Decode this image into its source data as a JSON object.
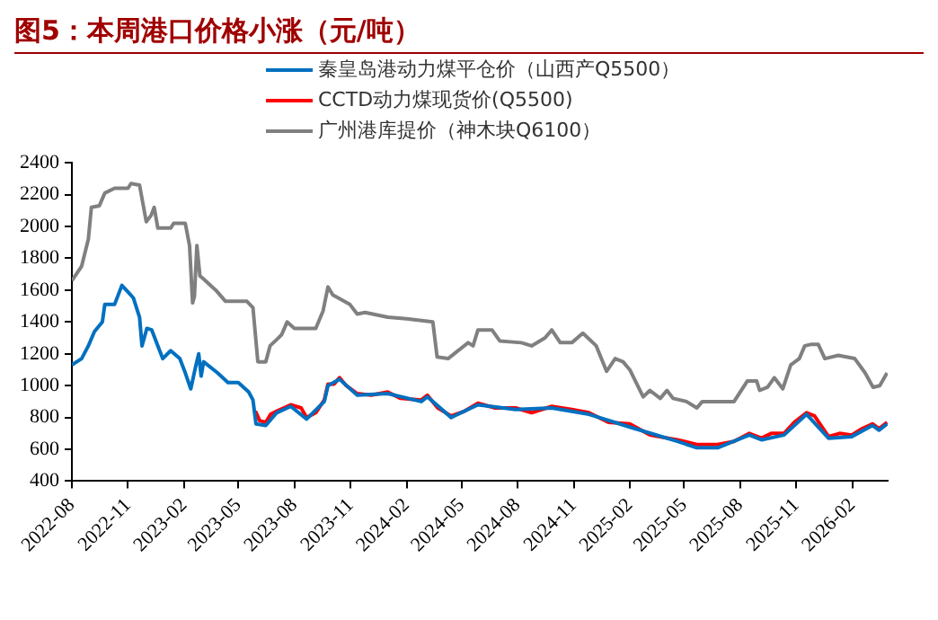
{
  "chart_data": {
    "type": "line",
    "title": "图5：本周港口价格小涨（元/吨）",
    "xlim": [
      "2022-08-01",
      "2026-03-31"
    ],
    "xticks": [
      "2022-08",
      "2022-11",
      "2023-02",
      "2023-05",
      "2023-08",
      "2023-11",
      "2024-02",
      "2024-05",
      "2024-08",
      "2024-11",
      "2025-02",
      "2025-05",
      "2025-08",
      "2025-11",
      "2026-02"
    ],
    "ylim": [
      400,
      2400
    ],
    "yticks": [
      400,
      600,
      800,
      1000,
      1200,
      1400,
      1600,
      1800,
      2000,
      2200,
      2400
    ],
    "grid": false,
    "legend": "top",
    "marker": "none",
    "line_style": "solid",
    "series": [
      {
        "name": "秦皇岛港动力煤平仓价（山西产Q5500）",
        "color": "#0070c0",
        "x": [
          "2022-08-01",
          "2022-08-17",
          "2022-08-28",
          "2022-09-07",
          "2022-09-20",
          "2022-09-24",
          "2022-10-10",
          "2022-10-22",
          "2022-11-03",
          "2022-11-10",
          "2022-11-20",
          "2022-11-24",
          "2022-12-02",
          "2022-12-10",
          "2022-12-20",
          "2022-12-28",
          "2023-01-10",
          "2023-01-25",
          "2023-02-03",
          "2023-02-12",
          "2023-02-20",
          "2023-02-25",
          "2023-03-01",
          "2023-03-05",
          "2023-03-28",
          "2023-04-14",
          "2023-05-01",
          "2023-05-18",
          "2023-05-25",
          "2023-05-30",
          "2023-06-15",
          "2023-07-03",
          "2023-07-26",
          "2023-08-21",
          "2023-09-19",
          "2023-09-25",
          "2023-10-14",
          "2023-11-12",
          "2024-01-01",
          "2024-02-25",
          "2024-03-06",
          "2024-04-14",
          "2024-05-28",
          "2024-07-29",
          "2024-09-26",
          "2024-11-26",
          "2025-02-01",
          "2025-04-20",
          "2025-05-22",
          "2025-06-25",
          "2025-08-16",
          "2025-09-05",
          "2025-10-12",
          "2025-11-18",
          "2025-12-24",
          "2026-01-31",
          "2026-03-06",
          "2026-03-17",
          "2026-03-30"
        ],
        "values": [
          1130,
          1170,
          1250,
          1340,
          1400,
          1510,
          1510,
          1630,
          1580,
          1550,
          1430,
          1250,
          1360,
          1350,
          1250,
          1170,
          1220,
          1170,
          1080,
          980,
          1120,
          1200,
          1060,
          1150,
          1080,
          1020,
          1020,
          960,
          910,
          760,
          750,
          830,
          870,
          790,
          900,
          1000,
          1040,
          940,
          950,
          900,
          930,
          800,
          880,
          850,
          860,
          820,
          740,
          650,
          610,
          610,
          690,
          660,
          690,
          820,
          670,
          680,
          750,
          720,
          760
        ]
      },
      {
        "name": "CCTD动力煤现货价(Q5500)",
        "color": "#ff0000",
        "x": [
          "2023-05-29",
          "2023-06-05",
          "2023-06-15",
          "2023-06-23",
          "2023-07-03",
          "2023-07-26",
          "2023-08-12",
          "2023-08-21",
          "2023-09-05",
          "2023-09-19",
          "2023-09-25",
          "2023-10-05",
          "2023-10-14",
          "2023-10-25",
          "2023-11-12",
          "2023-12-05",
          "2024-01-01",
          "2024-01-22",
          "2024-02-25",
          "2024-03-06",
          "2024-03-23",
          "2024-04-14",
          "2024-05-06",
          "2024-05-28",
          "2024-06-25",
          "2024-07-29",
          "2024-08-24",
          "2024-09-26",
          "2024-10-29",
          "2024-11-26",
          "2024-12-28",
          "2025-02-01",
          "2025-03-06",
          "2025-04-20",
          "2025-05-22",
          "2025-06-25",
          "2025-07-22",
          "2025-08-16",
          "2025-09-05",
          "2025-09-21",
          "2025-10-12",
          "2025-10-29",
          "2025-11-18",
          "2025-12-01",
          "2025-12-24",
          "2026-01-11",
          "2026-01-31",
          "2026-02-17",
          "2026-03-06",
          "2026-03-17",
          "2026-03-30"
        ],
        "values": [
          840,
          780,
          770,
          820,
          840,
          880,
          860,
          800,
          830,
          910,
          1010,
          1010,
          1050,
          1000,
          950,
          940,
          960,
          920,
          910,
          940,
          860,
          810,
          840,
          890,
          860,
          860,
          830,
          870,
          850,
          830,
          770,
          760,
          690,
          660,
          630,
          630,
          650,
          700,
          670,
          700,
          700,
          770,
          830,
          810,
          680,
          700,
          690,
          730,
          760,
          730,
          770
        ]
      },
      {
        "name": "广州港库提价（神木块Q6100）",
        "color": "#808080",
        "x": [
          "2022-08-01",
          "2022-08-17",
          "2022-08-28",
          "2022-09-02",
          "2022-09-15",
          "2022-09-24",
          "2022-10-10",
          "2022-11-01",
          "2022-11-06",
          "2022-11-20",
          "2022-12-01",
          "2022-12-09",
          "2022-12-14",
          "2022-12-20",
          "2023-01-10",
          "2023-01-15",
          "2023-02-03",
          "2023-02-10",
          "2023-02-15",
          "2023-02-18",
          "2023-02-22",
          "2023-02-27",
          "2023-03-05",
          "2023-03-25",
          "2023-04-10",
          "2023-05-15",
          "2023-05-25",
          "2023-06-02",
          "2023-06-15",
          "2023-06-22",
          "2023-07-03",
          "2023-07-11",
          "2023-07-20",
          "2023-08-01",
          "2023-09-05",
          "2023-09-17",
          "2023-09-25",
          "2023-10-03",
          "2023-10-31",
          "2023-11-12",
          "2023-11-25",
          "2024-01-01",
          "2024-02-01",
          "2024-03-15",
          "2024-03-22",
          "2024-04-09",
          "2024-05-12",
          "2024-05-20",
          "2024-05-28",
          "2024-06-20",
          "2024-07-03",
          "2024-08-07",
          "2024-08-24",
          "2024-09-15",
          "2024-09-26",
          "2024-10-10",
          "2024-10-29",
          "2024-11-16",
          "2024-12-08",
          "2024-12-25",
          "2025-01-08",
          "2025-01-21",
          "2025-02-01",
          "2025-02-23",
          "2025-03-06",
          "2025-03-23",
          "2025-04-03",
          "2025-04-13",
          "2025-05-05",
          "2025-05-22",
          "2025-05-31",
          "2025-07-22",
          "2025-08-13",
          "2025-08-28",
          "2025-09-02",
          "2025-09-15",
          "2025-09-26",
          "2025-10-10",
          "2025-10-23",
          "2025-11-06",
          "2025-11-15",
          "2025-11-26",
          "2025-12-07",
          "2025-12-18",
          "2026-01-09",
          "2026-02-05",
          "2026-02-22",
          "2026-03-07",
          "2026-03-18",
          "2026-03-30"
        ],
        "values": [
          1660,
          1750,
          1920,
          2120,
          2130,
          2210,
          2240,
          2240,
          2270,
          2260,
          2030,
          2070,
          2120,
          1990,
          1990,
          2020,
          2020,
          1880,
          1520,
          1560,
          1880,
          1690,
          1670,
          1600,
          1530,
          1530,
          1490,
          1150,
          1150,
          1250,
          1290,
          1320,
          1400,
          1360,
          1360,
          1470,
          1620,
          1570,
          1510,
          1450,
          1460,
          1430,
          1420,
          1400,
          1180,
          1170,
          1270,
          1250,
          1350,
          1350,
          1280,
          1270,
          1250,
          1300,
          1350,
          1270,
          1270,
          1330,
          1250,
          1090,
          1170,
          1150,
          1100,
          930,
          970,
          920,
          970,
          920,
          900,
          860,
          900,
          900,
          1030,
          1030,
          970,
          990,
          1050,
          980,
          1130,
          1170,
          1250,
          1260,
          1260,
          1170,
          1190,
          1170,
          1080,
          990,
          1000,
          1080
        ]
      }
    ]
  }
}
